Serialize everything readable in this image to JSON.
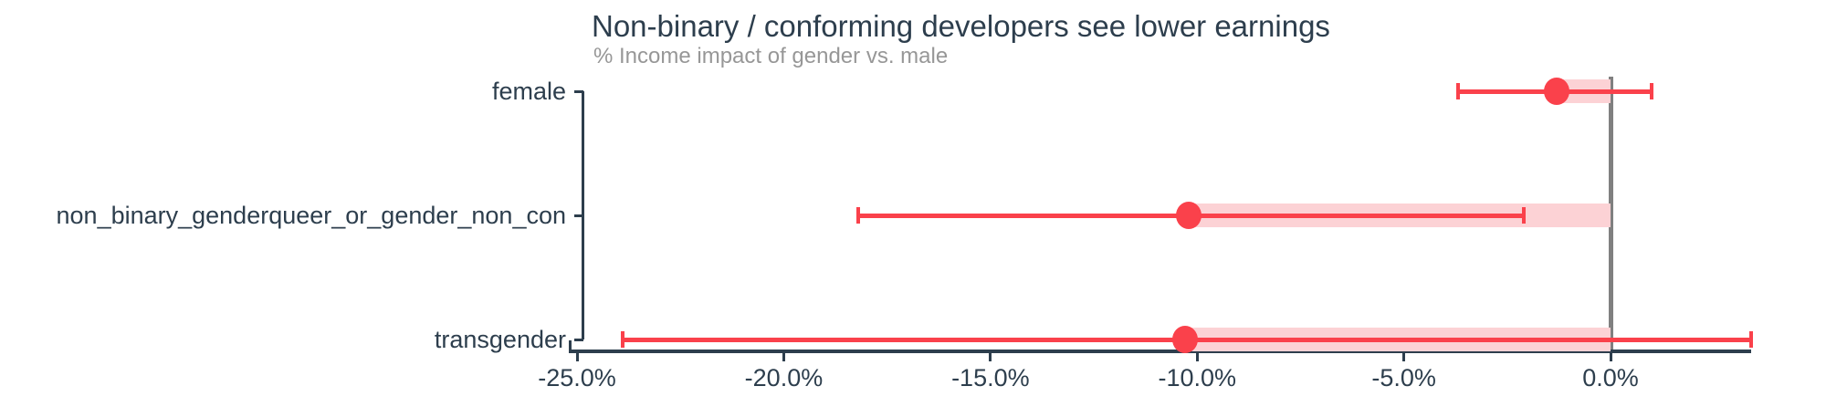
{
  "chart_data": {
    "type": "scatter",
    "subtype": "dot-with-error-bars",
    "orientation": "horizontal",
    "title": "Non-binary / conforming developers see lower earnings",
    "subtitle": "% Income impact of gender vs. male",
    "unit": "%",
    "categories": [
      "female",
      "non_binary_genderqueer_or_gender_non_con",
      "transgender"
    ],
    "points": [
      {
        "category": "female",
        "estimate": -1.3,
        "ci_low": -3.7,
        "ci_high": 1.0
      },
      {
        "category": "non_binary_genderqueer_or_gender_non_con",
        "estimate": -10.2,
        "ci_low": -18.2,
        "ci_high": -2.1
      },
      {
        "category": "transgender",
        "estimate": -10.3,
        "ci_low": -23.9,
        "ci_high": 3.4
      }
    ],
    "x_ticks": [
      -25,
      -20,
      -15,
      -10,
      -5,
      0
    ],
    "x_tick_labels": [
      "-25.0%",
      "-20.0%",
      "-15.0%",
      "-10.0%",
      "-5.0%",
      "0.0%"
    ],
    "xlim": [
      -25.2,
      3.4
    ],
    "reference_line_x": 0,
    "grid": false,
    "legend": false,
    "colors": {
      "point": "#FA414B",
      "interval": "#FA414B",
      "band": "#FCD2D5",
      "reference_line": "#808080",
      "axis": "#2D3E4D",
      "title": "#2D3E4D",
      "subtitle": "#979797"
    }
  }
}
